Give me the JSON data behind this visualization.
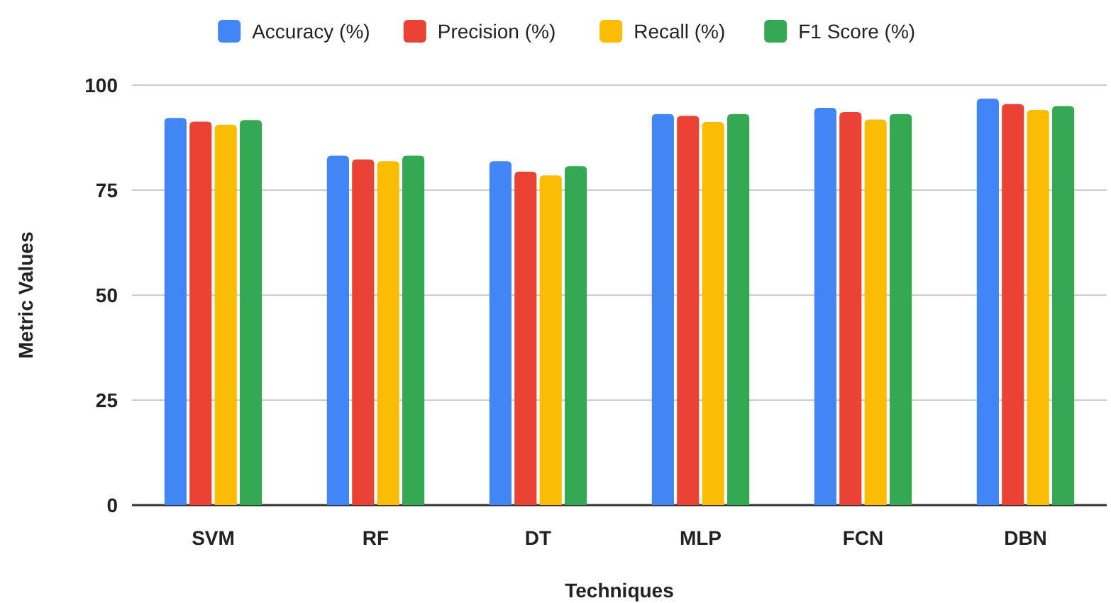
{
  "chart_data": {
    "type": "bar",
    "xlabel": "Techniques",
    "ylabel": "Metric Values",
    "categories": [
      "SVM",
      "RF",
      "DT",
      "MLP",
      "FCN",
      "DBN"
    ],
    "series": [
      {
        "name": "Accuracy (%)",
        "color": "#4285f4",
        "values": [
          92.2,
          83.2,
          81.9,
          93.1,
          94.6,
          96.8
        ]
      },
      {
        "name": "Precision (%)",
        "color": "#ea4335",
        "values": [
          91.3,
          82.3,
          79.4,
          92.7,
          93.6,
          95.5
        ]
      },
      {
        "name": "Recall (%)",
        "color": "#fbbc04",
        "values": [
          90.6,
          81.9,
          78.5,
          91.2,
          91.8,
          94.1
        ]
      },
      {
        "name": "F1 Score (%)",
        "color": "#34a853",
        "values": [
          91.7,
          83.2,
          80.7,
          93.1,
          93.1,
          95
        ]
      }
    ],
    "ylim": [
      0,
      100
    ],
    "yticks": [
      0,
      25,
      50,
      75,
      100
    ],
    "grid": "y",
    "legend": "top"
  }
}
